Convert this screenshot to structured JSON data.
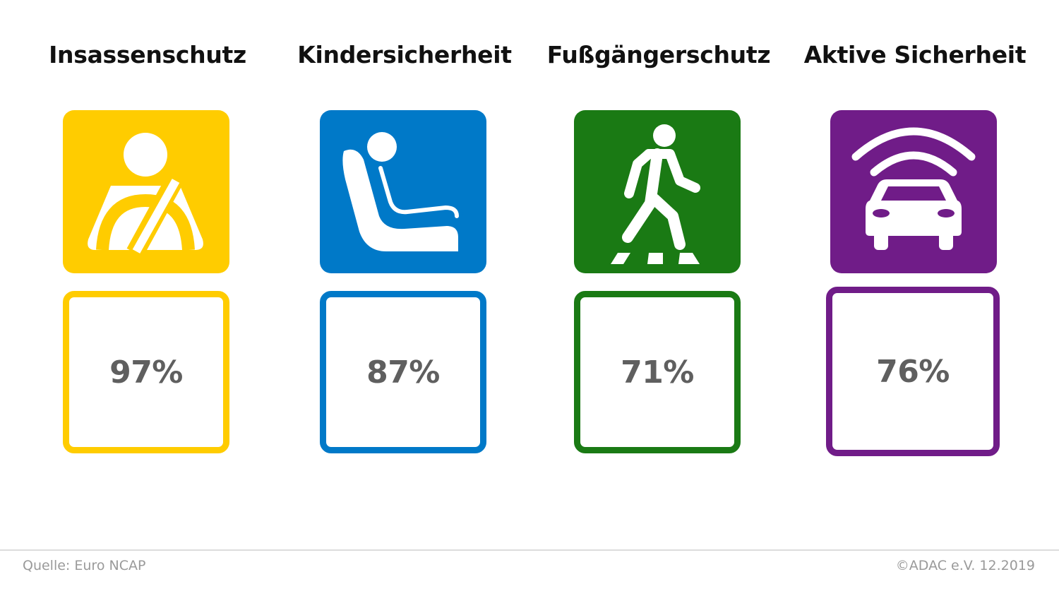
{
  "categories": [
    {
      "title": "Insassenschutz",
      "score": "97%",
      "color": "#FFCC00",
      "icon": "seatbelt-driver-icon"
    },
    {
      "title": "Kindersicherheit",
      "score": "87%",
      "color": "#0079C8",
      "icon": "child-seat-icon"
    },
    {
      "title": "Fußgängerschutz",
      "score": "71%",
      "color": "#1A7A14",
      "icon": "pedestrian-crossing-icon"
    },
    {
      "title": "Aktive Sicherheit",
      "score": "76%",
      "color": "#701C88",
      "icon": "car-sensor-icon"
    }
  ],
  "footer": {
    "source": "Quelle: Euro NCAP",
    "copyright": "©ADAC e.V.  12.2019"
  }
}
